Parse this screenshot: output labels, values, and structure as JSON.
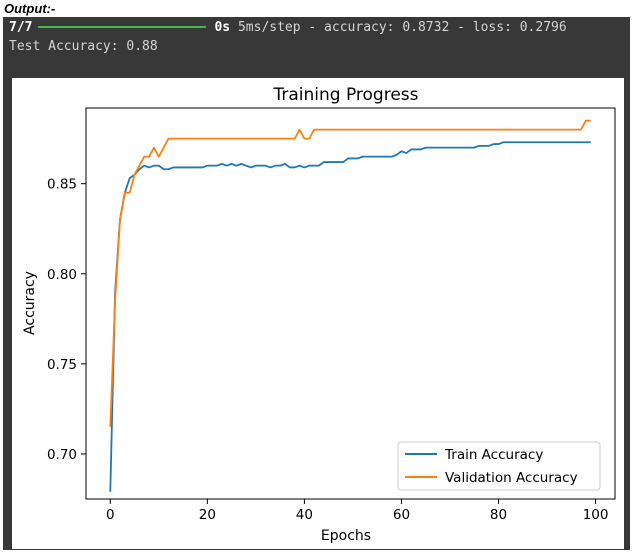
{
  "header": {
    "output_label": "Output:-"
  },
  "console": {
    "progress_count": "7/7",
    "progress_fraction": 1.0,
    "progress_time": "0s",
    "progress_metrics": "5ms/step - accuracy: 0.8732 - loss: 0.2796",
    "test_accuracy_line": "Test Accuracy: 0.88"
  },
  "colors": {
    "train": "#1f77b4",
    "validation": "#ff7f0e",
    "console_bg": "#383838",
    "progress": "#3fb950"
  },
  "chart_data": {
    "type": "line",
    "title": "Training Progress",
    "xlabel": "Epochs",
    "ylabel": "Accuracy",
    "xlim": [
      -5,
      104
    ],
    "ylim": [
      0.675,
      0.892
    ],
    "xticks": [
      0,
      20,
      40,
      60,
      80,
      100
    ],
    "yticks": [
      0.7,
      0.75,
      0.8,
      0.85
    ],
    "legend_position": "lower-right",
    "grid": false,
    "series": [
      {
        "name": "Train Accuracy",
        "color": "#1f77b4",
        "x": [
          0,
          1,
          2,
          3,
          4,
          5,
          6,
          7,
          8,
          9,
          10,
          11,
          12,
          13,
          14,
          15,
          16,
          17,
          18,
          19,
          20,
          21,
          22,
          23,
          24,
          25,
          26,
          27,
          28,
          29,
          30,
          31,
          32,
          33,
          34,
          35,
          36,
          37,
          38,
          39,
          40,
          41,
          42,
          43,
          44,
          45,
          46,
          47,
          48,
          49,
          50,
          51,
          52,
          53,
          54,
          55,
          56,
          57,
          58,
          59,
          60,
          61,
          62,
          63,
          64,
          65,
          66,
          67,
          68,
          69,
          70,
          71,
          72,
          73,
          74,
          75,
          76,
          77,
          78,
          79,
          80,
          81,
          82,
          83,
          84,
          85,
          86,
          87,
          88,
          89,
          90,
          91,
          92,
          93,
          94,
          95,
          96,
          97,
          98,
          99
        ],
        "y": [
          0.679,
          0.79,
          0.83,
          0.845,
          0.853,
          0.855,
          0.858,
          0.86,
          0.859,
          0.86,
          0.86,
          0.858,
          0.858,
          0.859,
          0.859,
          0.859,
          0.859,
          0.859,
          0.859,
          0.859,
          0.86,
          0.86,
          0.86,
          0.861,
          0.86,
          0.861,
          0.86,
          0.861,
          0.86,
          0.859,
          0.86,
          0.86,
          0.86,
          0.859,
          0.86,
          0.86,
          0.861,
          0.859,
          0.859,
          0.86,
          0.859,
          0.86,
          0.86,
          0.86,
          0.862,
          0.862,
          0.862,
          0.862,
          0.862,
          0.864,
          0.864,
          0.864,
          0.865,
          0.865,
          0.865,
          0.865,
          0.865,
          0.865,
          0.865,
          0.866,
          0.868,
          0.867,
          0.869,
          0.869,
          0.869,
          0.87,
          0.87,
          0.87,
          0.87,
          0.87,
          0.87,
          0.87,
          0.87,
          0.87,
          0.87,
          0.87,
          0.871,
          0.871,
          0.871,
          0.872,
          0.872,
          0.873,
          0.873,
          0.873,
          0.873,
          0.873,
          0.873,
          0.873,
          0.873,
          0.873,
          0.873,
          0.873,
          0.873,
          0.873,
          0.873,
          0.873,
          0.873,
          0.873,
          0.873,
          0.873
        ]
      },
      {
        "name": "Validation Accuracy",
        "color": "#ff7f0e",
        "x": [
          0,
          1,
          2,
          3,
          4,
          5,
          6,
          7,
          8,
          9,
          10,
          11,
          12,
          13,
          14,
          15,
          16,
          17,
          18,
          19,
          20,
          21,
          22,
          23,
          24,
          25,
          26,
          27,
          28,
          29,
          30,
          31,
          32,
          33,
          34,
          35,
          36,
          37,
          38,
          39,
          40,
          41,
          42,
          43,
          44,
          45,
          46,
          47,
          48,
          49,
          50,
          51,
          52,
          53,
          54,
          55,
          56,
          57,
          58,
          59,
          60,
          61,
          62,
          63,
          64,
          65,
          66,
          67,
          68,
          69,
          70,
          71,
          72,
          73,
          74,
          75,
          76,
          77,
          78,
          79,
          80,
          81,
          82,
          83,
          84,
          85,
          86,
          87,
          88,
          89,
          90,
          91,
          92,
          93,
          94,
          95,
          96,
          97,
          98,
          99
        ],
        "y": [
          0.715,
          0.785,
          0.83,
          0.845,
          0.845,
          0.855,
          0.86,
          0.865,
          0.865,
          0.87,
          0.865,
          0.87,
          0.875,
          0.875,
          0.875,
          0.875,
          0.875,
          0.875,
          0.875,
          0.875,
          0.875,
          0.875,
          0.875,
          0.875,
          0.875,
          0.875,
          0.875,
          0.875,
          0.875,
          0.875,
          0.875,
          0.875,
          0.875,
          0.875,
          0.875,
          0.875,
          0.875,
          0.875,
          0.875,
          0.88,
          0.875,
          0.875,
          0.88,
          0.88,
          0.88,
          0.88,
          0.88,
          0.88,
          0.88,
          0.88,
          0.88,
          0.88,
          0.88,
          0.88,
          0.88,
          0.88,
          0.88,
          0.88,
          0.88,
          0.88,
          0.88,
          0.88,
          0.88,
          0.88,
          0.88,
          0.88,
          0.88,
          0.88,
          0.88,
          0.88,
          0.88,
          0.88,
          0.88,
          0.88,
          0.88,
          0.88,
          0.88,
          0.88,
          0.88,
          0.88,
          0.88,
          0.88,
          0.88,
          0.88,
          0.88,
          0.88,
          0.88,
          0.88,
          0.88,
          0.88,
          0.88,
          0.88,
          0.88,
          0.88,
          0.88,
          0.88,
          0.88,
          0.88,
          0.885,
          0.885
        ]
      }
    ]
  }
}
